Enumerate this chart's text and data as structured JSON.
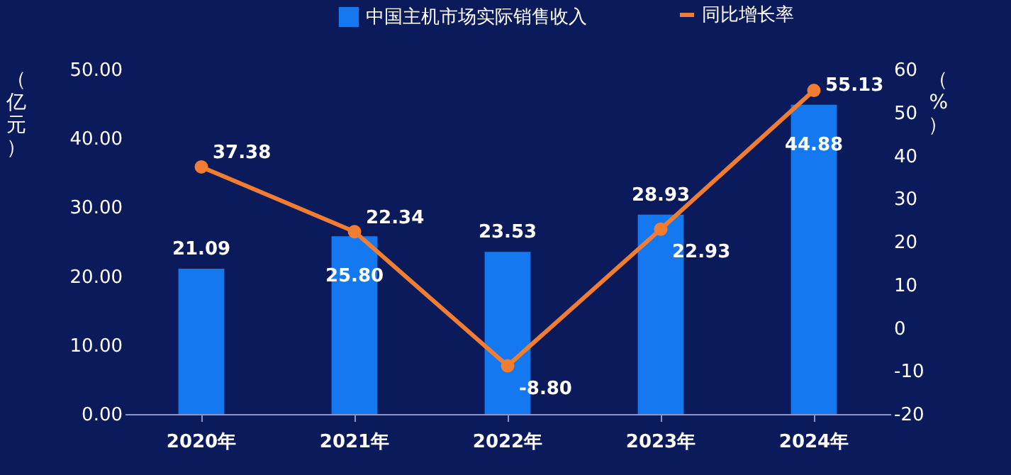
{
  "chart_data": {
    "type": "bar",
    "categories": [
      "2020年",
      "2021年",
      "2022年",
      "2023年",
      "2024年"
    ],
    "ylabel": "（亿元）",
    "y2label": "（%）",
    "ylim": [
      0,
      50
    ],
    "yticks": [
      {
        "value": 0,
        "label": "0.00"
      },
      {
        "value": 10,
        "label": "10.00"
      },
      {
        "value": 20,
        "label": "20.00"
      },
      {
        "value": 30,
        "label": "30.00"
      },
      {
        "value": 40,
        "label": "40.00"
      },
      {
        "value": 50,
        "label": "50.00"
      }
    ],
    "y2lim": [
      -20,
      60
    ],
    "y2ticks": [
      -20,
      -10,
      0,
      10,
      20,
      30,
      40,
      50,
      60
    ],
    "series": [
      {
        "name": "中国主机市场实际销售收入",
        "type": "bar",
        "color": "#1478f0",
        "values": [
          21.09,
          25.8,
          23.53,
          28.93,
          44.88
        ],
        "value_labels": [
          "21.09",
          "25.80",
          "23.53",
          "28.93",
          "44.88"
        ]
      },
      {
        "name": "同比增长率",
        "type": "line",
        "axis": "y2",
        "color": "#f07d32",
        "marker": "circle",
        "values": [
          37.38,
          22.34,
          -8.8,
          22.93,
          55.13
        ],
        "value_labels": [
          "37.38",
          "22.34",
          "-8.80",
          "22.93",
          "55.13"
        ]
      }
    ],
    "legend": "top",
    "grid": false
  }
}
